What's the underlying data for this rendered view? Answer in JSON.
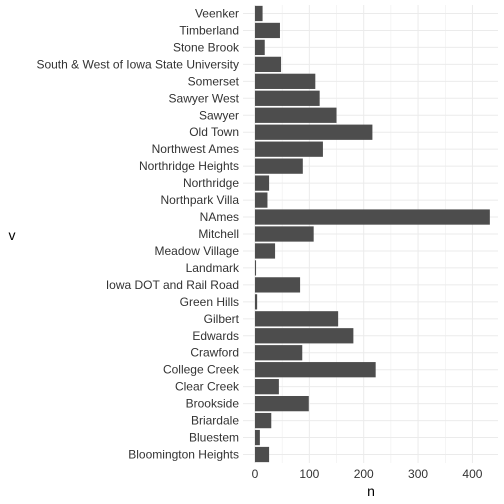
{
  "chart_data": {
    "type": "bar",
    "orientation": "horizontal",
    "xlabel": "n",
    "ylabel": "v",
    "xlim": [
      -22,
      447
    ],
    "xticks": [
      0,
      100,
      200,
      300,
      400
    ],
    "grid": true,
    "bar_color": "#4d4d4d",
    "grid_color": "#ebebeb",
    "categories": [
      "Veenker",
      "Timberland",
      "Stone Brook",
      "South & West of Iowa State University",
      "Somerset",
      "Sawyer West",
      "Sawyer",
      "Old Town",
      "Northwest Ames",
      "Northridge Heights",
      "Northridge",
      "Northpark Villa",
      "NAmes",
      "Mitchell",
      "Meadow Village",
      "Landmark",
      "Iowa DOT and Rail Road",
      "Green Hills",
      "Gilbert",
      "Edwards",
      "Crawford",
      "College Creek",
      "Clear Creek",
      "Brookside",
      "Briardale",
      "Bluestem",
      "Bloomington Heights"
    ],
    "values": [
      14,
      46,
      18,
      48,
      111,
      119,
      150,
      216,
      125,
      88,
      26,
      23,
      432,
      108,
      37,
      2,
      83,
      4,
      153,
      181,
      87,
      222,
      44,
      99,
      30,
      9,
      26
    ]
  }
}
